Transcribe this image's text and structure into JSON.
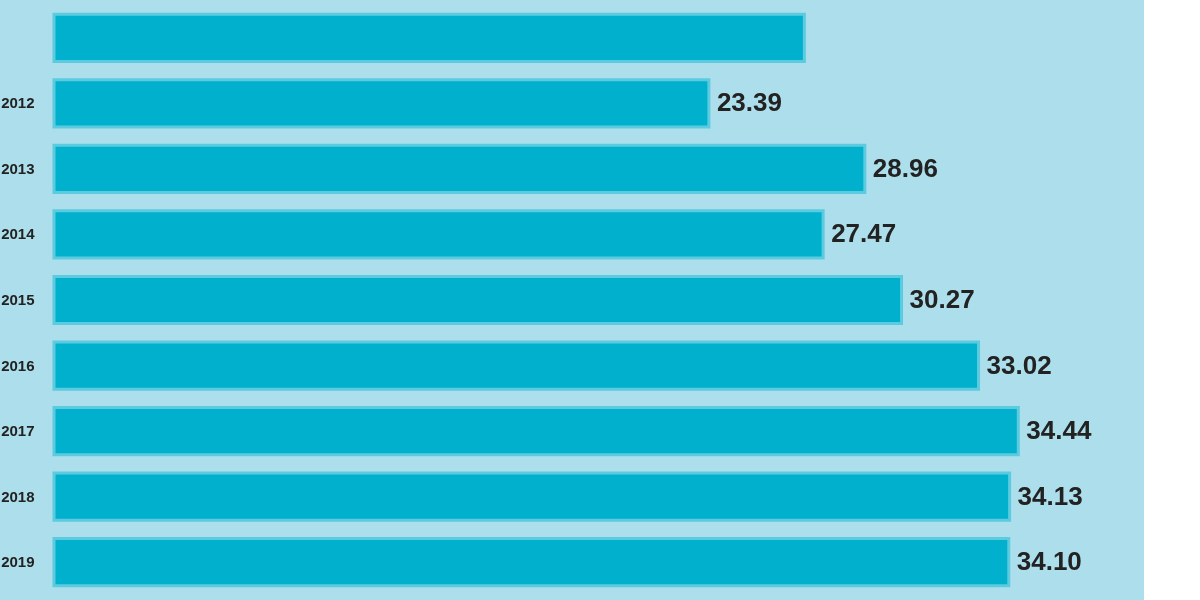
{
  "chart_data": {
    "type": "bar",
    "orientation": "horizontal",
    "categories": [
      null,
      "2012",
      "2013",
      "2014",
      "2015",
      "2016",
      "2017",
      "2018",
      "2019"
    ],
    "values": [
      26.8,
      23.39,
      28.96,
      27.47,
      30.27,
      33.02,
      34.44,
      34.13,
      34.1
    ],
    "value_labels": [
      null,
      "23.39",
      "28.96",
      "27.47",
      "30.27",
      "33.02",
      "34.44",
      "34.13",
      "34.10"
    ],
    "color": "#00b0cc"
  }
}
